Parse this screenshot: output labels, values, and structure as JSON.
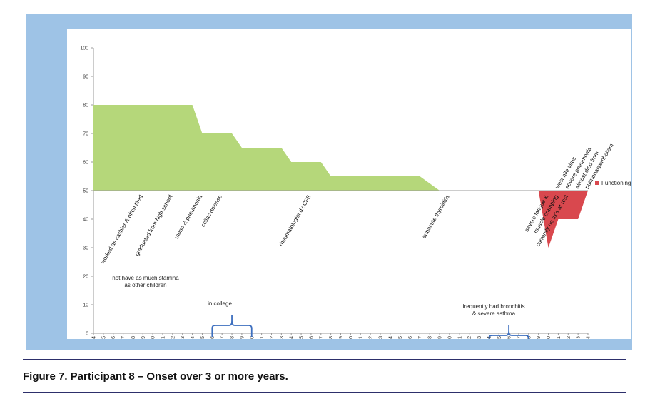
{
  "caption": "Figure 7. Participant 8 – Onset over 3 or more years.",
  "chart_data": {
    "type": "area",
    "baseline": 50,
    "ylim": [
      0,
      100
    ],
    "yticks": [
      0,
      10,
      20,
      30,
      40,
      50,
      60,
      70,
      80,
      90,
      100
    ],
    "categories": [
      "1964",
      "1965",
      "1966",
      "1967",
      "1968",
      "1969",
      "1970",
      "1971",
      "1972",
      "1973",
      "1974",
      "1975",
      "1976",
      "1977",
      "1978",
      "1979",
      "1980",
      "1981",
      "1982",
      "1983",
      "1984",
      "1985",
      "1986",
      "1987",
      "1988",
      "1989",
      "1990",
      "1991",
      "1992",
      "1993",
      "1994",
      "1995",
      "1996",
      "1997",
      "1998",
      "1999",
      "2000",
      "2001",
      "2002",
      "2003",
      "2004",
      "2005",
      "2006",
      "2007",
      "2008",
      "2009",
      "2010",
      "2011",
      "2012",
      "2013",
      "2014"
    ],
    "series": [
      {
        "name": "Functioning",
        "points": [
          {
            "x": "1964",
            "y": 80
          },
          {
            "x": "1974",
            "y": 80
          },
          {
            "x": "1975",
            "y": 70
          },
          {
            "x": "1978",
            "y": 70
          },
          {
            "x": "1979",
            "y": 65
          },
          {
            "x": "1983",
            "y": 65
          },
          {
            "x": "1984",
            "y": 60
          },
          {
            "x": "1987",
            "y": 60
          },
          {
            "x": "1988",
            "y": 55
          },
          {
            "x": "1997",
            "y": 55
          },
          {
            "x": "1999",
            "y": 50
          },
          {
            "x": "2009",
            "y": 50
          },
          {
            "x": "2010",
            "y": 30
          },
          {
            "x": "2011",
            "y": 40
          },
          {
            "x": "2013",
            "y": 40
          },
          {
            "x": "2014",
            "y": 50
          }
        ],
        "color_above": "#b5d77a",
        "color_below": "#d9484e"
      }
    ],
    "annotations": [
      {
        "text": "worked as cashier & often tired",
        "x": "1969"
      },
      {
        "text": "graduated from high school",
        "x": "1972"
      },
      {
        "text": "mono & pneumonia",
        "x": "1975"
      },
      {
        "text": "celiac disease",
        "x": "1977"
      },
      {
        "text": "rheumatologist dx CFS",
        "x": "1986"
      },
      {
        "text": "subacute thyroiditis",
        "x": "2000"
      },
      {
        "text": "west nile virus",
        "x": "2011"
      },
      {
        "text": "severe pneumonia",
        "x": "2012"
      },
      {
        "text": "almost died from",
        "x": "2013"
      },
      {
        "text": "pulmonaryembolism",
        "x": "2014"
      },
      {
        "text": "severe fatigue &",
        "x": "2010"
      },
      {
        "text": "muscle cramping",
        "x": "2011"
      },
      {
        "text": "currently no sx's at rest",
        "x": "2012"
      }
    ],
    "notes": [
      {
        "lines": [
          "not have as much stamina",
          "as other children"
        ]
      },
      {
        "lines": [
          "in college"
        ],
        "bracket": [
          "1976",
          "1980"
        ]
      },
      {
        "lines": [
          "frequently had bronchitis",
          "& severe asthma"
        ],
        "bracket": [
          "2004",
          "2008"
        ]
      }
    ],
    "legend": {
      "label": "Functioning",
      "position": "right"
    }
  }
}
